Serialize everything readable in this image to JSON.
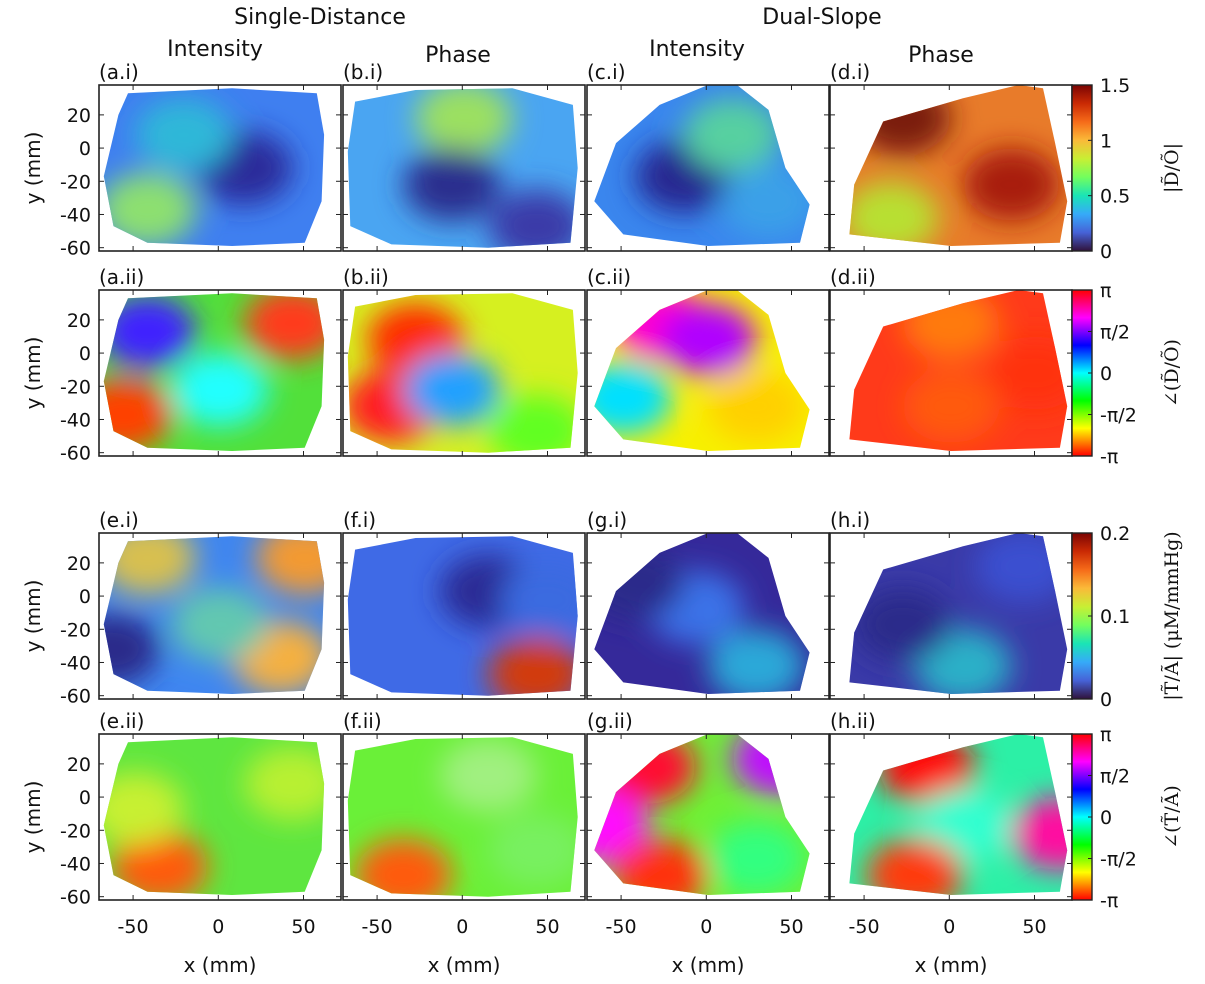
{
  "figure": {
    "group_headers": [
      "Single-Distance",
      "Dual-Slope"
    ],
    "column_headers": [
      "Intensity",
      "Phase",
      "Intensity",
      "Phase"
    ],
    "x_label": "x (mm)",
    "y_label": "y (mm)"
  },
  "chart_data": {
    "type": "heatmap",
    "x_ticks": [
      -50,
      0,
      50
    ],
    "y_ticks": [
      20,
      0,
      -20,
      -40,
      -60
    ],
    "xlim": [
      -70,
      72
    ],
    "ylim": [
      -62,
      38
    ],
    "panel_labels": [
      [
        "(a.i)",
        "(b.i)",
        "(c.i)",
        "(d.i)"
      ],
      [
        "(a.ii)",
        "(b.ii)",
        "(c.ii)",
        "(d.ii)"
      ],
      [
        "(e.i)",
        "(f.i)",
        "(g.i)",
        "(h.i)"
      ],
      [
        "(e.ii)",
        "(f.ii)",
        "(g.ii)",
        "(h.ii)"
      ]
    ],
    "colorbars": [
      {
        "label": "|D̃/Õ|",
        "ticks": [
          "1.5",
          "1",
          "0.5",
          "0"
        ],
        "colormap": "parula-like",
        "range": [
          0,
          1.5
        ]
      },
      {
        "label": "∠(D̃/Õ)",
        "ticks": [
          "π",
          "π/2",
          "0",
          "-π/2",
          "-π"
        ],
        "colormap": "hsv",
        "range": [
          -3.1416,
          3.1416
        ]
      },
      {
        "label": "|T̃/Ã| (μM/mmHg)",
        "ticks": [
          "0.2",
          "0.1",
          "0"
        ],
        "colormap": "parula-like",
        "range": [
          0,
          0.2
        ]
      },
      {
        "label": "∠(T̃/Ã)",
        "ticks": [
          "π",
          "π/2",
          "0",
          "-π/2",
          "-π"
        ],
        "colormap": "hsv",
        "range": [
          -3.1416,
          3.1416
        ]
      }
    ]
  }
}
